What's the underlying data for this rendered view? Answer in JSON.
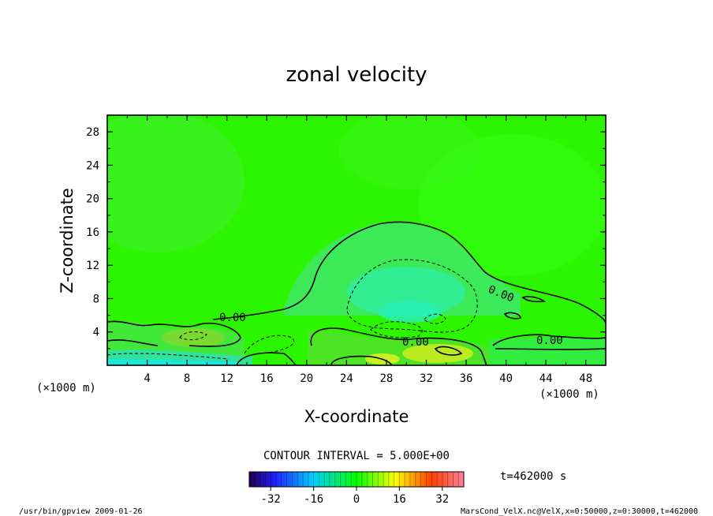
{
  "chart_data": {
    "type": "heatmap",
    "title": "zonal velocity",
    "xlabel": "X-coordinate",
    "ylabel": "Z-coordinate",
    "x_unit": "(×1000 m)",
    "z_unit": "(×1000 m)",
    "xlim": [
      0,
      50
    ],
    "ylim": [
      0,
      30
    ],
    "x_ticks": [
      4,
      8,
      12,
      16,
      20,
      24,
      28,
      32,
      36,
      40,
      44,
      48
    ],
    "y_ticks": [
      4,
      8,
      12,
      16,
      20,
      24,
      28
    ],
    "contour_interval_label": "CONTOUR INTERVAL = 5.000E+00",
    "contour_labels": [
      "0.00",
      "0.00",
      "0.00",
      "0.00"
    ],
    "colorbar": {
      "min": -40,
      "max": 40,
      "ticks": [
        -32,
        -16,
        0,
        16,
        32
      ]
    },
    "time_label": "t=462000 s",
    "footer_left": "/usr/bin/gpview  2009-01-26",
    "footer_right": "MarsCond_VelX.nc@VelX,x=0:50000,z=0:30000,t=462000"
  },
  "colors": {
    "background": "#00ff00"
  }
}
